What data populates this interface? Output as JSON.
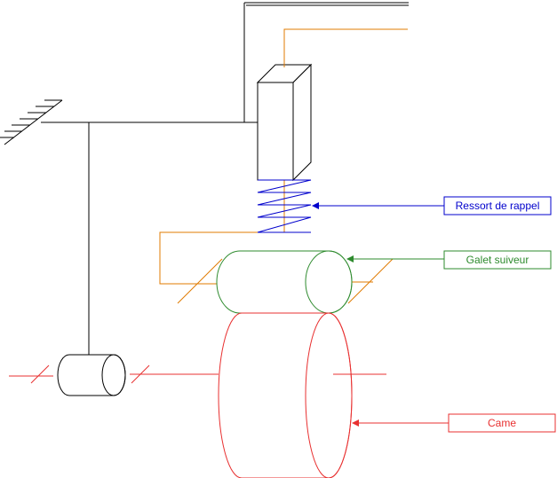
{
  "labels": {
    "spring": "Ressort de rappel",
    "follower": "Galet suiveur",
    "cam": "Came"
  },
  "colors": {
    "frame": "#000000",
    "spring": "#0000cc",
    "follower": "#2e8b2e",
    "cam": "#e83030",
    "rod": "#e07b00"
  }
}
